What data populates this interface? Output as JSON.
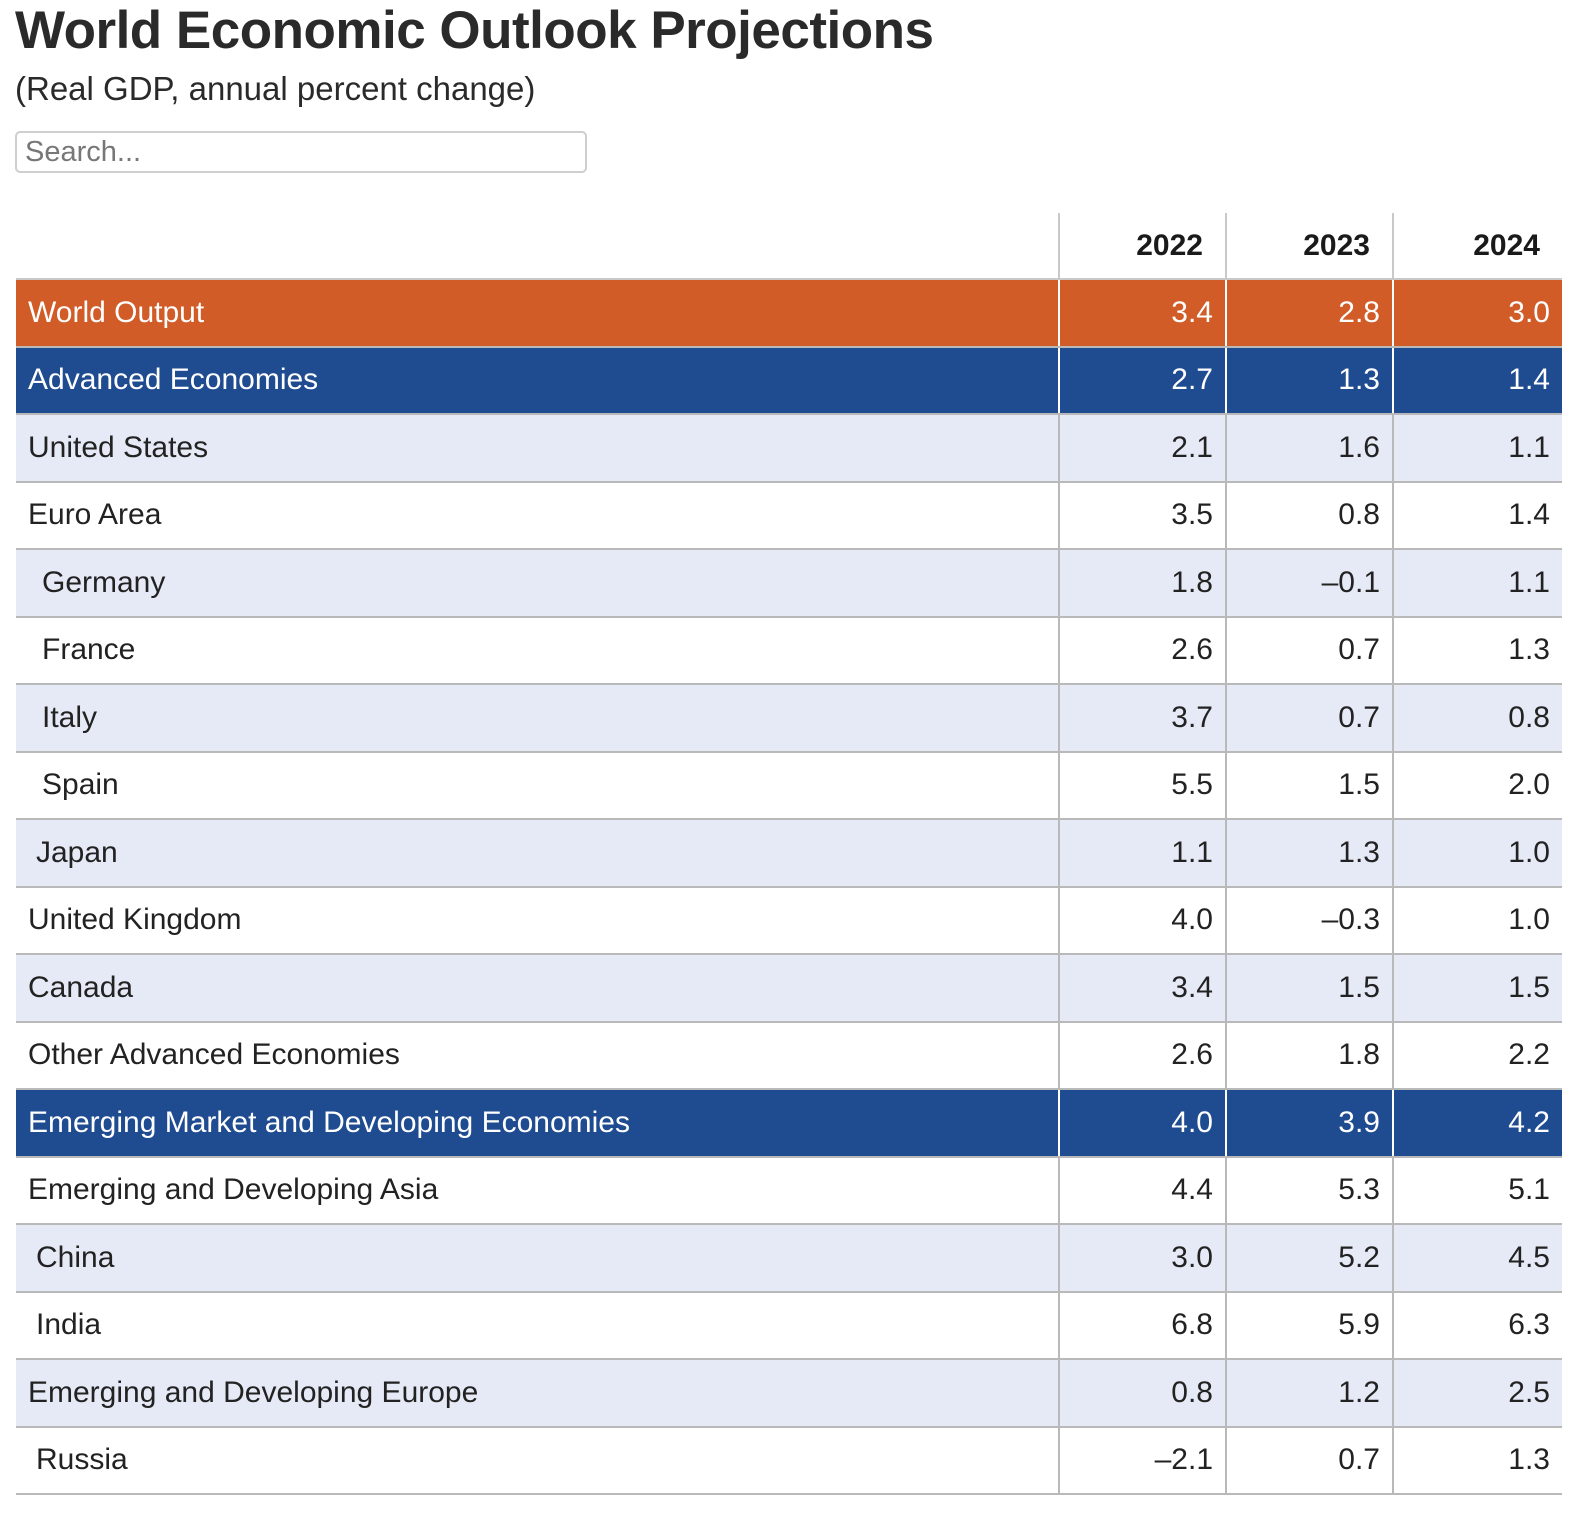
{
  "header": {
    "title": "World Economic Outlook Projections",
    "subtitle": "(Real GDP, annual percent change)"
  },
  "search": {
    "placeholder": "Search...",
    "value": ""
  },
  "table": {
    "columns": [
      "",
      "2022",
      "2023",
      "2024"
    ],
    "rows": [
      {
        "name": "World Output",
        "v2022": "3.4",
        "v2023": "2.8",
        "v2024": "3.0"
      },
      {
        "name": "Advanced Economies",
        "v2022": "2.7",
        "v2023": "1.3",
        "v2024": "1.4"
      },
      {
        "name": "United States",
        "v2022": "2.1",
        "v2023": "1.6",
        "v2024": "1.1"
      },
      {
        "name": "Euro Area",
        "v2022": "3.5",
        "v2023": "0.8",
        "v2024": "1.4"
      },
      {
        "name": "Germany",
        "v2022": "1.8",
        "v2023": "–0.1",
        "v2024": "1.1"
      },
      {
        "name": "France",
        "v2022": "2.6",
        "v2023": "0.7",
        "v2024": "1.3"
      },
      {
        "name": "Italy",
        "v2022": "3.7",
        "v2023": "0.7",
        "v2024": "0.8"
      },
      {
        "name": "Spain",
        "v2022": "5.5",
        "v2023": "1.5",
        "v2024": "2.0"
      },
      {
        "name": "Japan",
        "v2022": "1.1",
        "v2023": "1.3",
        "v2024": "1.0"
      },
      {
        "name": "United Kingdom",
        "v2022": "4.0",
        "v2023": "–0.3",
        "v2024": "1.0"
      },
      {
        "name": "Canada",
        "v2022": "3.4",
        "v2023": "1.5",
        "v2024": "1.5"
      },
      {
        "name": "Other Advanced Economies",
        "v2022": "2.6",
        "v2023": "1.8",
        "v2024": "2.2"
      },
      {
        "name": "Emerging Market and Developing Economies",
        "v2022": "4.0",
        "v2023": "3.9",
        "v2024": "4.2"
      },
      {
        "name": "Emerging and Developing Asia",
        "v2022": "4.4",
        "v2023": "5.3",
        "v2024": "5.1"
      },
      {
        "name": "China",
        "v2022": "3.0",
        "v2023": "5.2",
        "v2024": "4.5"
      },
      {
        "name": "India",
        "v2022": "6.8",
        "v2023": "5.9",
        "v2024": "6.3"
      },
      {
        "name": "Emerging and Developing Europe",
        "v2022": "0.8",
        "v2023": "1.2",
        "v2024": "2.5"
      },
      {
        "name": "Russia",
        "v2022": "–2.1",
        "v2023": "0.7",
        "v2024": "1.3"
      }
    ]
  },
  "colors": {
    "world_output_row": "#d15c27",
    "group_row": "#1f4b91",
    "light_row": "#e6eaf6",
    "white_row": "#ffffff"
  }
}
